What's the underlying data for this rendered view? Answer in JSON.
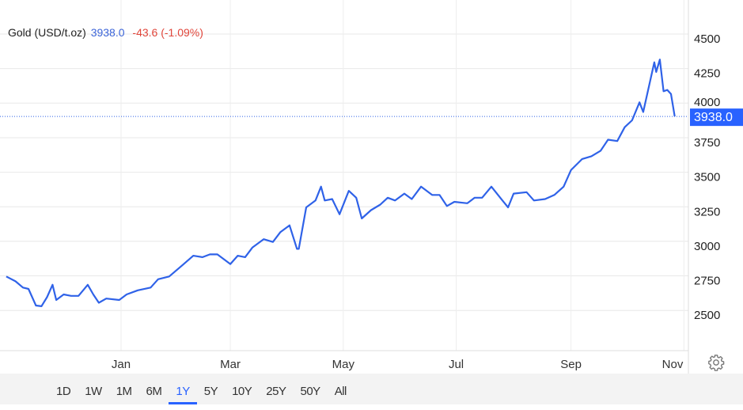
{
  "header": {
    "instrument": "Gold (USD/t.oz)",
    "price": "3938.0",
    "change": "-43.6 (-1.09%)"
  },
  "last_price_label": "3938.0",
  "ranges": [
    "1D",
    "1W",
    "1M",
    "6M",
    "1Y",
    "5Y",
    "10Y",
    "25Y",
    "50Y",
    "All"
  ],
  "active_range": "1Y",
  "settings_icon": "gear-icon",
  "colors": {
    "line": "#2f62e8",
    "price_label_bg": "#2962ff",
    "change": "#e0453a"
  },
  "chart_data": {
    "type": "line",
    "title": "Gold (USD/t.oz)",
    "x_ticks": [
      {
        "label": "Jan",
        "date": "2025-01-01"
      },
      {
        "label": "Mar",
        "date": "2025-03-01"
      },
      {
        "label": "May",
        "date": "2025-05-01"
      },
      {
        "label": "Jul",
        "date": "2025-07-01"
      },
      {
        "label": "Sep",
        "date": "2025-09-01"
      },
      {
        "label": "Nov",
        "date": "2025-11-01"
      }
    ],
    "y_ticks": [
      2500,
      2750,
      3000,
      3250,
      3500,
      3750,
      4000,
      4250,
      4500
    ],
    "y_axis_position": "right",
    "grid": true,
    "last_value": 3938.0,
    "points": [
      [
        "2024-10-31",
        2780
      ],
      [
        "2024-11-05",
        2745
      ],
      [
        "2024-11-09",
        2700
      ],
      [
        "2024-11-12",
        2690
      ],
      [
        "2024-11-16",
        2570
      ],
      [
        "2024-11-19",
        2565
      ],
      [
        "2024-11-22",
        2630
      ],
      [
        "2024-11-25",
        2720
      ],
      [
        "2024-11-27",
        2610
      ],
      [
        "2024-12-01",
        2650
      ],
      [
        "2024-12-05",
        2640
      ],
      [
        "2024-12-09",
        2640
      ],
      [
        "2024-12-14",
        2720
      ],
      [
        "2024-12-17",
        2650
      ],
      [
        "2024-12-20",
        2590
      ],
      [
        "2024-12-24",
        2620
      ],
      [
        "2024-12-31",
        2610
      ],
      [
        "2025-01-04",
        2650
      ],
      [
        "2025-01-10",
        2680
      ],
      [
        "2025-01-17",
        2700
      ],
      [
        "2025-01-21",
        2760
      ],
      [
        "2025-01-27",
        2780
      ],
      [
        "2025-02-03",
        2860
      ],
      [
        "2025-02-09",
        2930
      ],
      [
        "2025-02-14",
        2920
      ],
      [
        "2025-02-18",
        2940
      ],
      [
        "2025-02-22",
        2940
      ],
      [
        "2025-02-24",
        2920
      ],
      [
        "2025-03-01",
        2870
      ],
      [
        "2025-03-05",
        2930
      ],
      [
        "2025-03-09",
        2920
      ],
      [
        "2025-03-13",
        2990
      ],
      [
        "2025-03-19",
        3050
      ],
      [
        "2025-03-24",
        3030
      ],
      [
        "2025-03-28",
        3100
      ],
      [
        "2025-04-02",
        3150
      ],
      [
        "2025-04-06",
        2980
      ],
      [
        "2025-04-07",
        2980
      ],
      [
        "2025-04-11",
        3280
      ],
      [
        "2025-04-16",
        3330
      ],
      [
        "2025-04-19",
        3430
      ],
      [
        "2025-04-21",
        3330
      ],
      [
        "2025-04-25",
        3340
      ],
      [
        "2025-04-29",
        3230
      ],
      [
        "2025-05-04",
        3400
      ],
      [
        "2025-05-08",
        3350
      ],
      [
        "2025-05-11",
        3200
      ],
      [
        "2025-05-16",
        3260
      ],
      [
        "2025-05-21",
        3300
      ],
      [
        "2025-05-25",
        3350
      ],
      [
        "2025-05-29",
        3330
      ],
      [
        "2025-06-03",
        3380
      ],
      [
        "2025-06-07",
        3340
      ],
      [
        "2025-06-12",
        3430
      ],
      [
        "2025-06-18",
        3370
      ],
      [
        "2025-06-22",
        3370
      ],
      [
        "2025-06-26",
        3290
      ],
      [
        "2025-06-30",
        3320
      ],
      [
        "2025-07-07",
        3310
      ],
      [
        "2025-07-11",
        3350
      ],
      [
        "2025-07-15",
        3350
      ],
      [
        "2025-07-20",
        3430
      ],
      [
        "2025-07-26",
        3330
      ],
      [
        "2025-07-29",
        3280
      ],
      [
        "2025-08-01",
        3380
      ],
      [
        "2025-08-08",
        3390
      ],
      [
        "2025-08-12",
        3330
      ],
      [
        "2025-08-18",
        3340
      ],
      [
        "2025-08-23",
        3370
      ],
      [
        "2025-08-28",
        3430
      ],
      [
        "2025-09-01",
        3550
      ],
      [
        "2025-09-07",
        3630
      ],
      [
        "2025-09-12",
        3650
      ],
      [
        "2025-09-17",
        3690
      ],
      [
        "2025-09-21",
        3770
      ],
      [
        "2025-09-26",
        3760
      ],
      [
        "2025-09-30",
        3860
      ],
      [
        "2025-10-04",
        3910
      ],
      [
        "2025-10-08",
        4040
      ],
      [
        "2025-10-10",
        3970
      ],
      [
        "2025-10-13",
        4150
      ],
      [
        "2025-10-16",
        4330
      ],
      [
        "2025-10-17",
        4260
      ],
      [
        "2025-10-19",
        4350
      ],
      [
        "2025-10-21",
        4120
      ],
      [
        "2025-10-23",
        4130
      ],
      [
        "2025-10-25",
        4100
      ],
      [
        "2025-10-27",
        3938
      ]
    ]
  }
}
